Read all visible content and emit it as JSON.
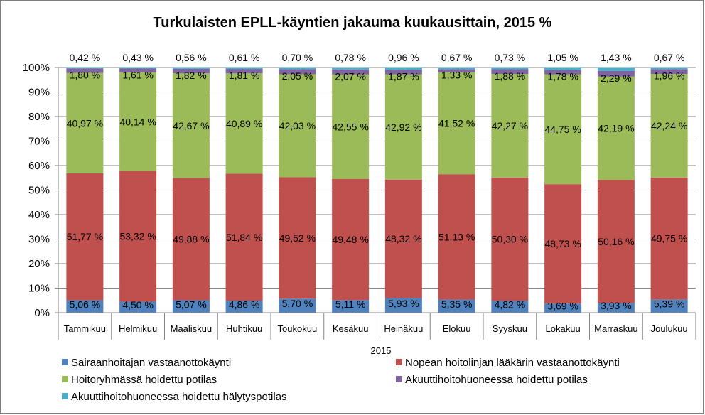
{
  "chart_data": {
    "type": "bar",
    "stacked": true,
    "title": "Turkulaisten EPLL-käyntien jakauma kuukausittain, 2015 %",
    "xlabel": "2015",
    "ylabel": "",
    "ylim": [
      0,
      100
    ],
    "yticks": [
      "0%",
      "10%",
      "20%",
      "30%",
      "40%",
      "50%",
      "60%",
      "70%",
      "80%",
      "90%",
      "100%"
    ],
    "grid": true,
    "legend_position": "bottom",
    "categories": [
      "Tammikuu",
      "Helmikuu",
      "Maaliskuu",
      "Huhtikuu",
      "Toukokuu",
      "Kesäkuu",
      "Heinäkuu",
      "Elokuu",
      "Syyskuu",
      "Lokakuu",
      "Marraskuu",
      "Joulukuu"
    ],
    "series": [
      {
        "name": "Sairaanhoitajan vastaanottokäynti",
        "color": "#4f81bd",
        "values": [
          5.06,
          4.5,
          5.07,
          4.86,
          5.7,
          5.11,
          5.93,
          5.35,
          4.82,
          3.69,
          3.93,
          5.39
        ],
        "labels": [
          "5,06 %",
          "4,50 %",
          "5,07 %",
          "4,86 %",
          "5,70 %",
          "5,11 %",
          "5,93 %",
          "5,35 %",
          "4,82 %",
          "3,69 %",
          "3,93 %",
          "5,39 %"
        ]
      },
      {
        "name": "Nopean hoitolinjan lääkärin vastaanottokäynti",
        "color": "#c0504d",
        "values": [
          51.77,
          53.32,
          49.88,
          51.84,
          49.52,
          49.48,
          48.32,
          51.13,
          50.3,
          48.73,
          50.16,
          49.75
        ],
        "labels": [
          "51,77 %",
          "53,32 %",
          "49,88 %",
          "51,84 %",
          "49,52 %",
          "49,48 %",
          "48,32 %",
          "51,13 %",
          "50,30 %",
          "48,73 %",
          "50,16 %",
          "49,75 %"
        ]
      },
      {
        "name": "Hoitoryhmässä hoidettu potilas",
        "color": "#9bbb59",
        "values": [
          40.97,
          40.14,
          42.67,
          40.89,
          42.03,
          42.55,
          42.92,
          41.52,
          42.27,
          44.75,
          42.19,
          42.24
        ],
        "labels": [
          "40,97 %",
          "40,14 %",
          "42,67 %",
          "40,89 %",
          "42,03 %",
          "42,55 %",
          "42,92 %",
          "41,52 %",
          "42,27 %",
          "44,75 %",
          "42,19 %",
          "42,24 %"
        ]
      },
      {
        "name": "Akuuttihoitohuoneessa hoidettu potilas",
        "color": "#8064a2",
        "values": [
          1.8,
          1.61,
          1.82,
          1.81,
          2.05,
          2.07,
          1.87,
          1.33,
          1.88,
          1.78,
          2.29,
          1.96
        ],
        "labels": [
          "1,80 %",
          "1,61 %",
          "1,82 %",
          "1,81 %",
          "2,05 %",
          "2,07 %",
          "1,87 %",
          "1,33 %",
          "1,88 %",
          "1,78 %",
          "2,29 %",
          "1,96 %"
        ]
      },
      {
        "name": "Akuuttihoitohuoneessa hoidettu hälytyspotilas",
        "color": "#4bacc6",
        "values": [
          0.42,
          0.43,
          0.56,
          0.61,
          0.7,
          0.78,
          0.96,
          0.67,
          0.73,
          1.05,
          1.43,
          0.67
        ],
        "labels": [
          "0,42 %",
          "0,43 %",
          "0,56 %",
          "0,61 %",
          "0,70 %",
          "0,78 %",
          "0,96 %",
          "0,67 %",
          "0,73 %",
          "1,05 %",
          "1,43 %",
          "0,67 %"
        ]
      }
    ]
  }
}
